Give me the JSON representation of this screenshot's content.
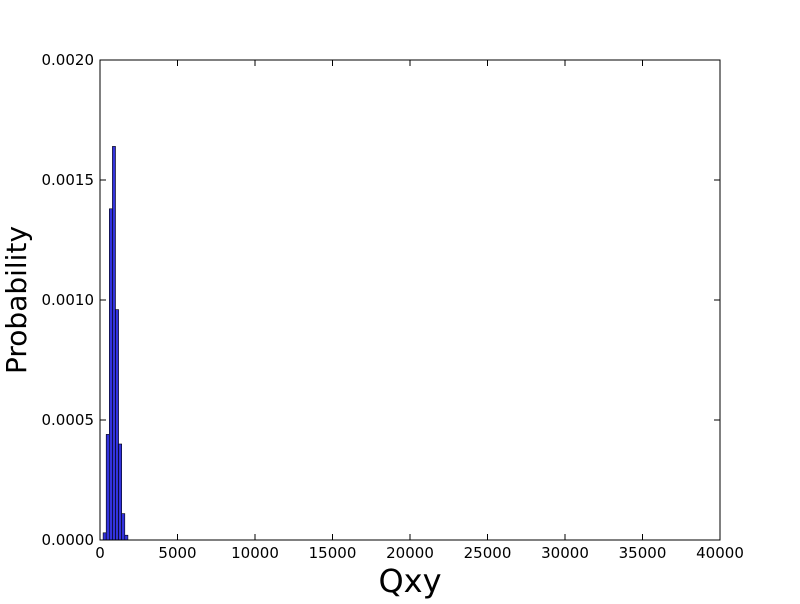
{
  "chart_data": {
    "type": "bar",
    "title": "",
    "xlabel": "Qxy",
    "ylabel": "Probability",
    "xlim": [
      0,
      40000
    ],
    "ylim": [
      0,
      0.002
    ],
    "grid": false,
    "x_ticks": [
      0,
      5000,
      10000,
      15000,
      20000,
      25000,
      30000,
      35000,
      40000
    ],
    "x_tick_labels": [
      "0",
      "5000",
      "10000",
      "15000",
      "20000",
      "25000",
      "30000",
      "35000",
      "40000"
    ],
    "y_ticks": [
      0,
      0.0005,
      0.001,
      0.0015,
      0.002
    ],
    "y_tick_labels": [
      "0.0000",
      "0.0005",
      "0.0010",
      "0.0015",
      "0.0020"
    ],
    "bar_color": "#3333dd",
    "bar_edge_color": "#000000",
    "bin_width": 200,
    "bins": [
      {
        "x_start": 200,
        "value": 3e-05
      },
      {
        "x_start": 400,
        "value": 0.00044
      },
      {
        "x_start": 600,
        "value": 0.00138
      },
      {
        "x_start": 800,
        "value": 0.00164
      },
      {
        "x_start": 1000,
        "value": 0.00096
      },
      {
        "x_start": 1200,
        "value": 0.0004
      },
      {
        "x_start": 1400,
        "value": 0.00011
      },
      {
        "x_start": 1600,
        "value": 2e-05
      }
    ]
  }
}
